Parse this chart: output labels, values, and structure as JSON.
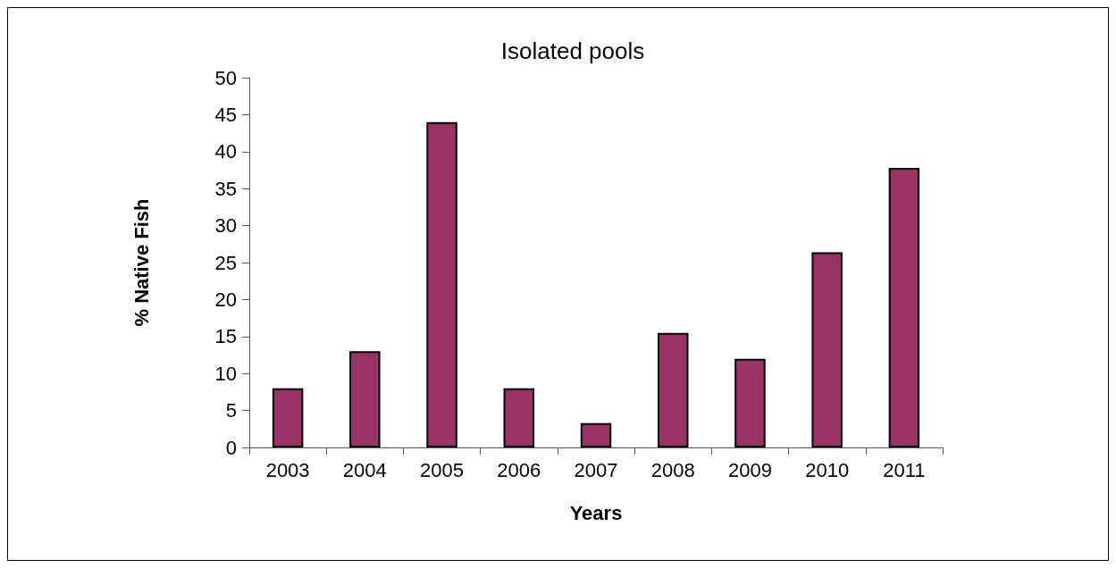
{
  "chart_data": {
    "type": "bar",
    "title": "Isolated pools",
    "xlabel": "Years",
    "ylabel": "% Native Fish",
    "categories": [
      "2003",
      "2004",
      "2005",
      "2006",
      "2007",
      "2008",
      "2009",
      "2010",
      "2011"
    ],
    "values": [
      8,
      13,
      44,
      8,
      3.3,
      15.5,
      12,
      26.4,
      37.8
    ],
    "color": "#993366",
    "ylim": [
      0,
      50
    ],
    "yticks": [
      0,
      5,
      10,
      15,
      20,
      25,
      30,
      35,
      40,
      45,
      50
    ],
    "grid": false
  }
}
